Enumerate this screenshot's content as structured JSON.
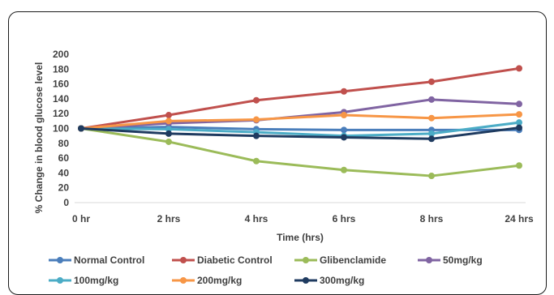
{
  "chart_data": {
    "type": "line",
    "categories": [
      "0 hr",
      "2 hrs",
      "4 hrs",
      "6 hrs",
      "8 hrs",
      "24 hrs"
    ],
    "xlabel": "Time (hrs)",
    "ylabel": "% Change in blood glucose level",
    "ylim": [
      0,
      200
    ],
    "yticks": [
      0,
      20,
      40,
      60,
      80,
      100,
      120,
      140,
      160,
      180,
      200
    ],
    "grid": false,
    "legend_position": "bottom",
    "series": [
      {
        "name": "Normal Control",
        "color": "#4a7ebb",
        "values": [
          100,
          102,
          99,
          98,
          98,
          98
        ]
      },
      {
        "name": "Diabetic Control",
        "color": "#c0504d",
        "values": [
          100,
          118,
          138,
          150,
          163,
          181
        ]
      },
      {
        "name": "Glibenclamide",
        "color": "#9bbb59",
        "values": [
          100,
          82,
          56,
          44,
          36,
          50
        ]
      },
      {
        "name": "50mg/kg",
        "color": "#8064a2",
        "values": [
          100,
          107,
          111,
          122,
          139,
          133
        ]
      },
      {
        "name": "100mg/kg",
        "color": "#4bacc6",
        "values": [
          100,
          99,
          95,
          90,
          93,
          108
        ]
      },
      {
        "name": "200mg/kg",
        "color": "#f79646",
        "values": [
          100,
          110,
          112,
          118,
          114,
          119
        ]
      },
      {
        "name": "300mg/kg",
        "color": "#1f3b60",
        "values": [
          100,
          93,
          90,
          88,
          86,
          101
        ]
      }
    ]
  }
}
